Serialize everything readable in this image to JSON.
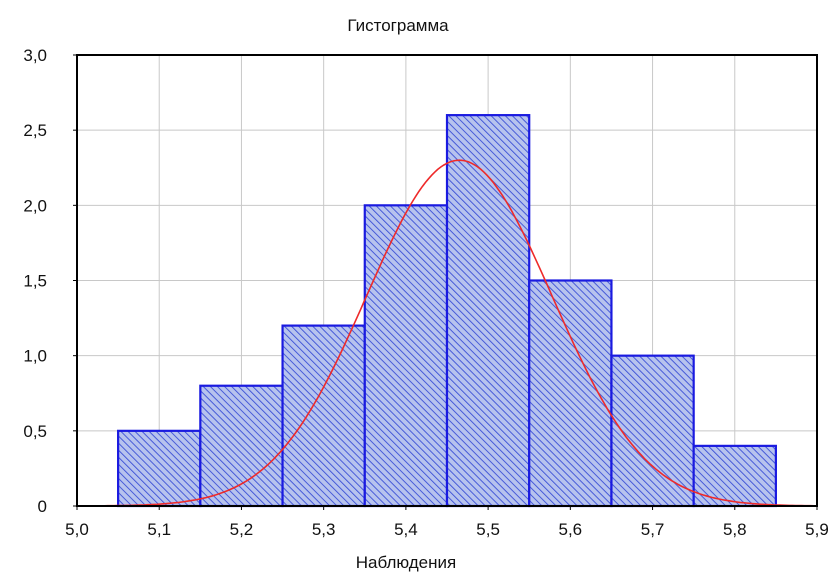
{
  "chart_data": {
    "type": "bar",
    "title": "Гистограмма",
    "xlabel": "Наблюдения",
    "ylabel": "",
    "xlim": [
      5.0,
      5.9
    ],
    "ylim": [
      0,
      3.0
    ],
    "x_ticks": [
      "5,0",
      "5,1",
      "5,2",
      "5,3",
      "5,4",
      "5,5",
      "5,6",
      "5,7",
      "5,8",
      "5,9"
    ],
    "x_tick_values": [
      5.0,
      5.1,
      5.2,
      5.3,
      5.4,
      5.5,
      5.6,
      5.7,
      5.8,
      5.9
    ],
    "y_ticks": [
      "0",
      "0,5",
      "1,0",
      "1,5",
      "2,0",
      "2,5",
      "3,0"
    ],
    "y_tick_values": [
      0,
      0.5,
      1.0,
      1.5,
      2.0,
      2.5,
      3.0
    ],
    "grid": true,
    "bins": [
      {
        "x0": 5.05,
        "x1": 5.15,
        "value": 0.5
      },
      {
        "x0": 5.15,
        "x1": 5.25,
        "value": 0.8
      },
      {
        "x0": 5.25,
        "x1": 5.35,
        "value": 1.2
      },
      {
        "x0": 5.35,
        "x1": 5.45,
        "value": 2.0
      },
      {
        "x0": 5.45,
        "x1": 5.55,
        "value": 2.6
      },
      {
        "x0": 5.55,
        "x1": 5.65,
        "value": 1.5
      },
      {
        "x0": 5.65,
        "x1": 5.75,
        "value": 1.0
      },
      {
        "x0": 5.75,
        "x1": 5.85,
        "value": 0.4
      }
    ],
    "fit_curve": {
      "type": "normal",
      "mean": 5.465,
      "sd": 0.113,
      "peak": 2.3
    },
    "colors": {
      "bar_fill": "#b7c3ee",
      "bar_hatch": "#3a4fd6",
      "bar_edge": "#1a1ae0",
      "curve": "#ee2a2a",
      "grid": "#c8c8c8",
      "frame": "#000000"
    }
  }
}
